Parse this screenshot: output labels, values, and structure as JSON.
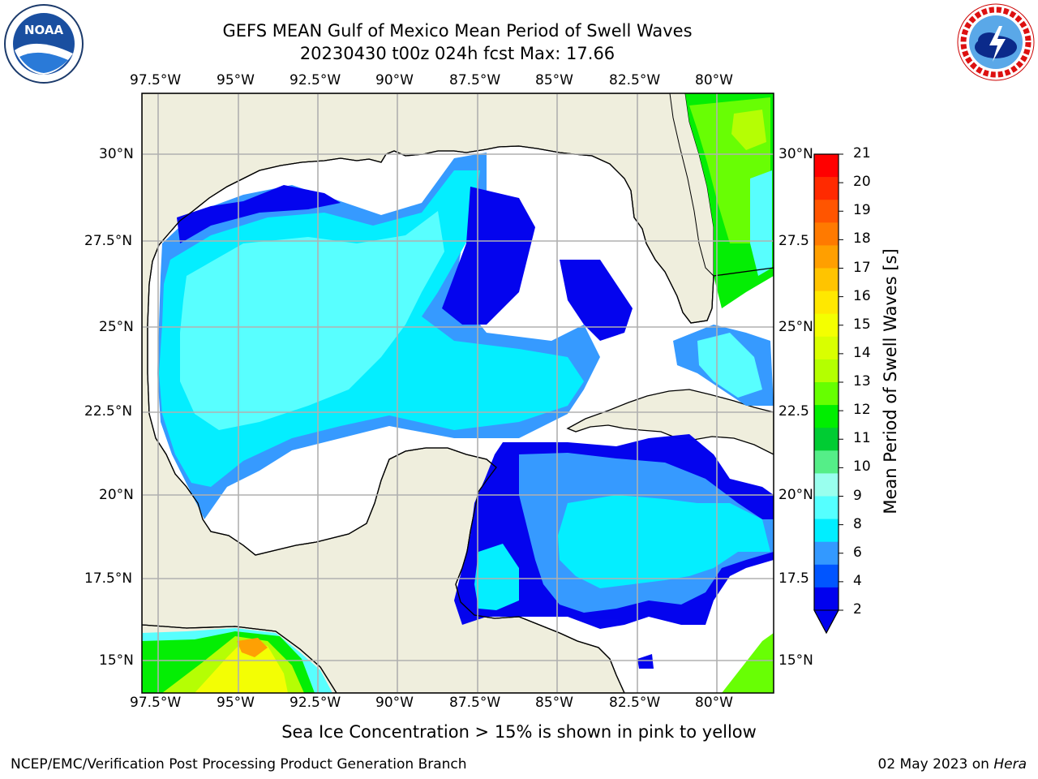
{
  "title": {
    "line1": "GEFS MEAN Gulf of Mexico Mean Period of Swell Waves",
    "line2": "20230430 t00z 024h fcst   Max: 17.66"
  },
  "map": {
    "lon_ticks": [
      "97.5°W",
      "95°W",
      "92.5°W",
      "90°W",
      "87.5°W",
      "85°W",
      "82.5°W",
      "80°W"
    ],
    "lat_ticks_left": [
      "30°N",
      "27.5°N",
      "25°N",
      "22.5°N",
      "20°N",
      "17.5°N",
      "15°N"
    ],
    "lat_ticks_right": [
      "30°N",
      "27.5",
      "25°N",
      "22.5",
      "20°N",
      "17.5",
      "15°N"
    ],
    "land_color": "#efeedd",
    "grid_color": "#b0b0b0"
  },
  "colorbar": {
    "label": "Mean Period of Swell Waves [s]",
    "ticks": [
      "21",
      "20",
      "19",
      "18",
      "17",
      "16",
      "15",
      "14",
      "13",
      "12",
      "11",
      "10",
      "9",
      "8",
      "6",
      "4",
      "2"
    ],
    "colors_top_to_bottom": [
      "#ff0000",
      "#ff2a00",
      "#ff5500",
      "#ff7a00",
      "#ff9f00",
      "#ffc400",
      "#ffe800",
      "#f4ff00",
      "#d9ff00",
      "#b4ff00",
      "#66ff00",
      "#00ee00",
      "#00cc33",
      "#55ee88",
      "#99ffee",
      "#55ffff",
      "#00eeff",
      "#3399ff",
      "#0055ff",
      "#0000ee"
    ]
  },
  "logos": {
    "noaa_text": "NOAA",
    "noaa_ring_text": "NATIONAL OCEANIC AND ATMOSPHERIC ADMINISTRATION · U.S. DEPARTMENT OF COMMERCE",
    "nws_ring_text": "NATIONAL WEATHER SERVICE"
  },
  "footer": {
    "sea_ice_note": "Sea Ice Concentration > 15% is shown in pink to yellow",
    "left": "NCEP/EMC/Verification Post Processing Product Generation Branch",
    "date": "02 May 2023 on ",
    "host": "Hera"
  }
}
